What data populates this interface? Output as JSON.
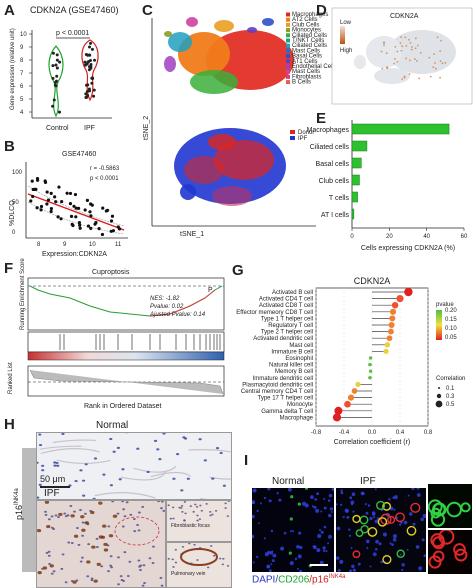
{
  "panel_letters": {
    "a": "A",
    "b": "B",
    "c": "C",
    "d": "D",
    "e": "E",
    "f": "F",
    "g": "G",
    "h": "H",
    "i": "I"
  },
  "panelA": {
    "title": "CDKN2A (GSE47460)",
    "ylabel": "Gene expression (relative unit)",
    "pvalue": "p < 0.0001",
    "groups": [
      "Control",
      "IPF"
    ],
    "colors": {
      "control": "#1ea32e",
      "ipf": "#d41e1e"
    },
    "yticks": [
      "10",
      "9",
      "8",
      "7",
      "6",
      "5",
      "4"
    ]
  },
  "panelB": {
    "title": "GSE47460",
    "ylabel": "%DLCO",
    "xlabel": "Expression:CDKN2A",
    "r": "r = -0.5863",
    "p": "p < 0.0001",
    "xticks": [
      "8",
      "9",
      "10",
      "11"
    ],
    "yticks": [
      "100",
      "50",
      "0"
    ]
  },
  "panelC": {
    "ylabel": "tSNE_2",
    "xlabel": "tSNE_1",
    "legend1": [
      "Macrophages",
      "AT2 Cells",
      "Club Cells",
      "Monocytes",
      "Ciliated Cells",
      "T/NKT Cells",
      "Ciliated Cells",
      "Mast Cells",
      "Basal Cells",
      "AT1 Cells",
      "Endothelial Cells",
      "Mast Cells",
      "Fibroblasts",
      "B Cells"
    ],
    "legend1_colors": [
      "#e0251c",
      "#f07c1a",
      "#e8a020",
      "#8aa020",
      "#3ab03a",
      "#2aa080",
      "#20a0c0",
      "#2070d0",
      "#3050c8",
      "#6040c0",
      "#a040c0",
      "#d040a0",
      "#e04070",
      "#e06050"
    ],
    "legend2": [
      "Donor",
      "IPF"
    ],
    "legend2_colors": [
      "#e0251c",
      "#2036d0"
    ]
  },
  "panelD": {
    "title": "CDKN2A",
    "legend_low": "Low",
    "legend_high": "High"
  },
  "chart_data": [
    {
      "type": "bar",
      "panel": "E",
      "categories": [
        "Macrophages",
        "Ciliated cells",
        "Basal cells",
        "Club cells",
        "T cells",
        "AT I cells"
      ],
      "values": [
        52,
        8,
        5,
        4,
        3,
        1
      ],
      "xlabel": "Cells expressing CDKN2A (%)",
      "xticks": [
        "0",
        "20",
        "40",
        "60"
      ],
      "xlim": [
        0,
        60
      ],
      "color": "#2ec02e"
    },
    {
      "type": "scatter",
      "panel": "G",
      "title": "CDKN2A",
      "categories": [
        "Activated B cell",
        "Activated CD4 T cell",
        "Activated CD8 T cell",
        "Effector memeory CD8 T cell",
        "Type 1 T helper cell",
        "Regulatory T cell",
        "Type 2 T helper cell",
        "Activated dendritic cell",
        "Mast cell",
        "Immature B cell",
        "Eosinophil",
        "Natural killer cell",
        "Memory B cell",
        "Immature dendritic cell",
        "Plasmacytoid dendritic cell",
        "Central memory CD4 T cell",
        "Type 17 T helper cell",
        "Monocyte",
        "Gamma delta T cell",
        "Macrophage"
      ],
      "values": [
        0.52,
        0.4,
        0.33,
        0.3,
        0.29,
        0.28,
        0.27,
        0.25,
        0.22,
        0.2,
        -0.02,
        -0.03,
        -0.02,
        -0.03,
        -0.2,
        -0.25,
        -0.3,
        -0.35,
        -0.48,
        -0.5
      ],
      "xlabel": "Correlation coefficient (r)",
      "xticks": [
        "-0.8",
        "-0.4",
        "0.0",
        "0.4",
        "0.8"
      ],
      "xlim": [
        -0.8,
        0.8
      ],
      "legend_pvalue_title": "pvalue",
      "legend_pvalue_ticks": [
        "0.20",
        "0.15",
        "0.10",
        "0.05"
      ],
      "legend_corr_title": "Correlation",
      "legend_corr_ticks": [
        "0.1",
        "0.3",
        "0.5"
      ]
    }
  ],
  "panelF": {
    "title": "Cuproptosis",
    "ylabel_top": "Running Enrichment Score",
    "ylabel_bottom": "Ranked List",
    "xlabel": "Rank in Ordered Dataset",
    "nes": "NES: -1.82",
    "pval": "Pvalue: 0.02",
    "adjp": "Ajusted Pvalue: 0.14",
    "marker": "P"
  },
  "panelH": {
    "normal": "Normal",
    "ipf": "IPF",
    "scale": "50 μm",
    "side": "p16",
    "side_sup": "INK4a",
    "inset1": "Fibroblastic focus",
    "inset2": "Pulmonary vein"
  },
  "panelI": {
    "normal": "Normal",
    "ipf": "IPF",
    "legend_dapi": "DAPI/",
    "legend_cd206": "CD206",
    "legend_slash": "/p16",
    "legend_sup": "INK4a"
  }
}
